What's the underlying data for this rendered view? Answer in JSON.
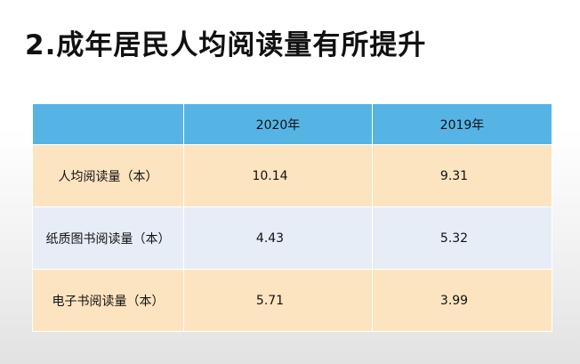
{
  "title": "2.成年居民人均阅读量有所提升",
  "table": {
    "headers": [
      "",
      "2020年",
      "2019年"
    ],
    "rows": [
      {
        "label": "人均阅读量（本）",
        "y2020": "10.14",
        "y2019": "9.31"
      },
      {
        "label": "纸质图书阅读量（本）",
        "y2020": "4.43",
        "y2019": "5.32"
      },
      {
        "label": "电子书阅读量（本）",
        "y2020": "5.71",
        "y2019": "3.99"
      }
    ]
  },
  "colors": {
    "header": "#56b4e5",
    "row_odd": "#fde4c0",
    "row_even": "#e7edf7"
  }
}
